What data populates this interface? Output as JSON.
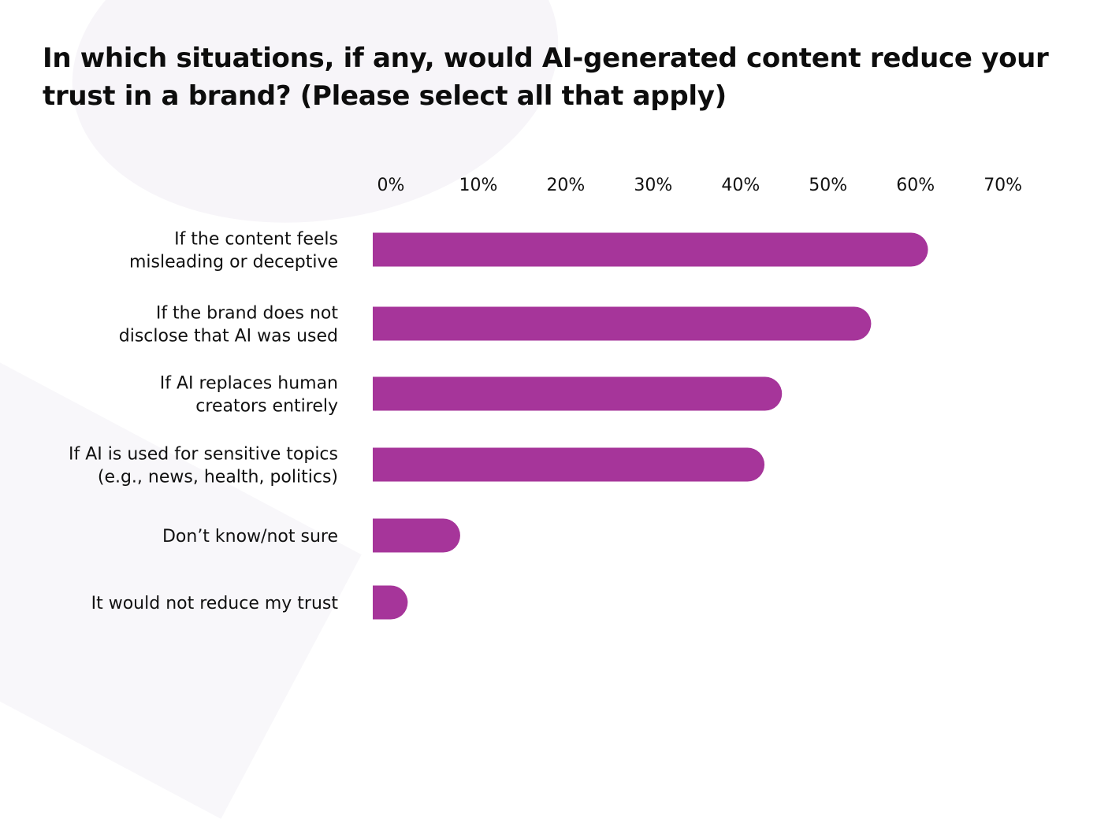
{
  "title": "In which situations, if any, would AI-generated content reduce your trust in a brand? (Please select all that apply)",
  "colors": {
    "bar": "#A6359A",
    "text": "#111111",
    "background": "#ffffff"
  },
  "chart_data": {
    "type": "bar",
    "orientation": "horizontal",
    "title": "In which situations, if any, would AI-generated content reduce your trust in a brand? (Please select all that apply)",
    "xlabel": "",
    "ylabel": "",
    "xlim": [
      0,
      70
    ],
    "ticks": [
      "0%",
      "10%",
      "20%",
      "30%",
      "40%",
      "50%",
      "60%",
      "70%"
    ],
    "tick_values": [
      0,
      10,
      20,
      30,
      40,
      50,
      60,
      70
    ],
    "axis_position": "top",
    "grid": false,
    "categories": [
      [
        "If the content feels",
        "misleading or deceptive"
      ],
      [
        "If the brand does not",
        "disclose that AI was used"
      ],
      [
        "If AI replaces human",
        "creators entirely"
      ],
      [
        "If AI is used for sensitive topics",
        "(e.g., news, health, politics)"
      ],
      [
        "Don’t know/not sure"
      ],
      [
        "It would not reduce my trust"
      ]
    ],
    "values": [
      63.5,
      57,
      46.8,
      44.8,
      10,
      4
    ]
  }
}
